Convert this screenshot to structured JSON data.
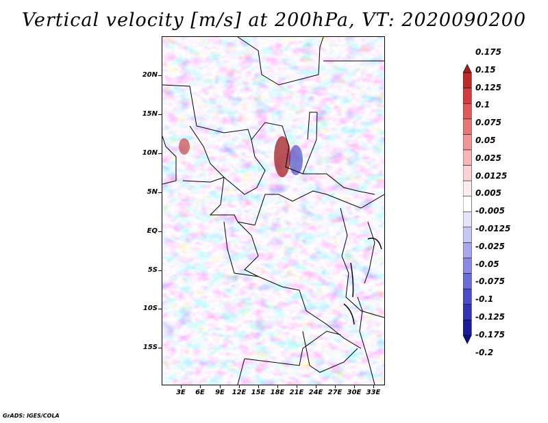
{
  "title": "Vertical velocity [m/s] at 200hPa, VT: 2020090200",
  "footer": "GrADS: IGES/COLA",
  "axes": {
    "lat_labels": [
      "20N",
      "15N",
      "10N",
      "5N",
      "EQ",
      "5S",
      "10S",
      "15S"
    ],
    "lon_labels": [
      "3E",
      "6E",
      "9E",
      "12E",
      "15E",
      "18E",
      "21E",
      "24E",
      "27E",
      "30E",
      "33E"
    ]
  },
  "colorbar": {
    "levels": [
      "0.175",
      "0.15",
      "0.125",
      "0.1",
      "0.075",
      "0.05",
      "0.025",
      "0.0125",
      "0.005",
      "-0.005",
      "-0.0125",
      "-0.025",
      "-0.05",
      "-0.075",
      "-0.1",
      "-0.125",
      "-0.175",
      "-0.2"
    ],
    "colors": [
      "#a01d21",
      "#be2a2a",
      "#d43d3d",
      "#e05a5a",
      "#e87878",
      "#f09696",
      "#f6b6b6",
      "#fad4d4",
      "#fdecec",
      "#ffffff",
      "#e4e4fb",
      "#c8c8f4",
      "#a8a8ec",
      "#8a8ae4",
      "#6c6cd8",
      "#4c4ccb",
      "#3333b5",
      "#1c1c9a",
      "#10107a"
    ]
  }
}
